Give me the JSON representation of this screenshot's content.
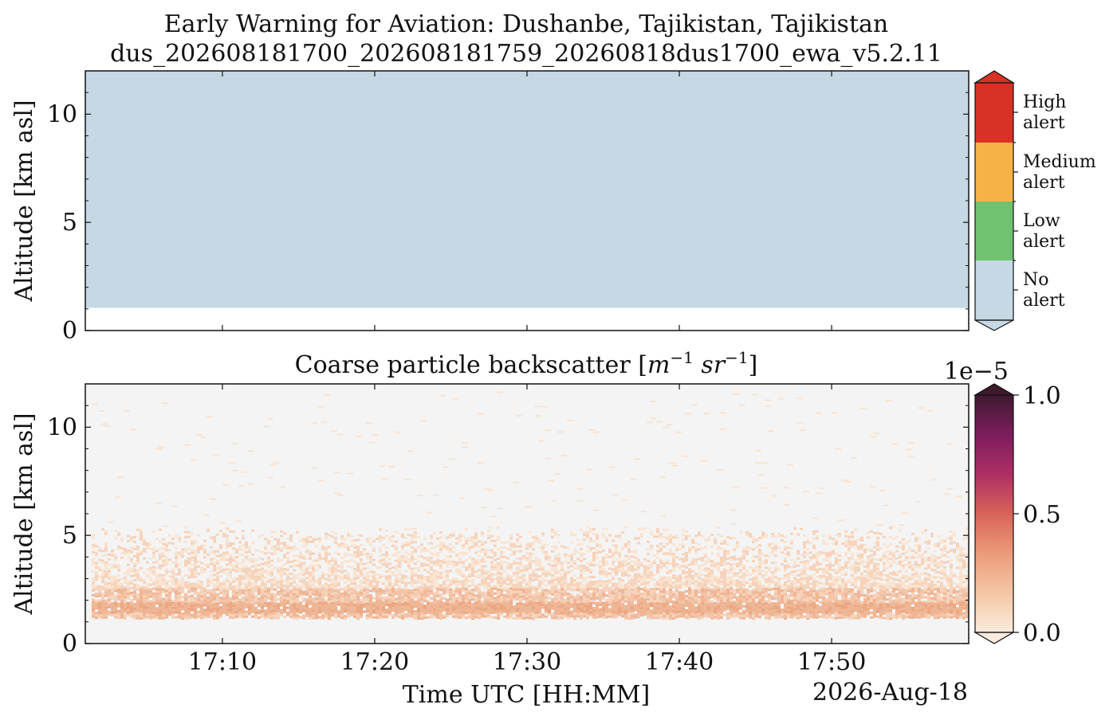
{
  "title_line1": "Early Warning for Aviation: Dushanbe, Tajikistan, Tajikistan",
  "title_line2": "dus_202608181700_202608181759_20260818dus1700_ewa_v5.2.11",
  "chart_data": [
    {
      "type": "heatmap",
      "panel": "alert",
      "title": "",
      "xlabel": "",
      "ylabel": "Altitude [km asl]",
      "x_range": [
        "17:00",
        "17:59"
      ],
      "ylim": [
        0,
        12
      ],
      "yticks": [
        0,
        5,
        10
      ],
      "data_bottom_km": 1.05,
      "data_top_km": 12,
      "alert_level": "No alert",
      "colorbar": {
        "labels": [
          "No\nalert",
          "Low\nalert",
          "Medium\nalert",
          "High\nalert"
        ],
        "colors": [
          "#c5d8e4",
          "#70c26f",
          "#f6b247",
          "#d83126"
        ],
        "extend": "both"
      }
    },
    {
      "type": "heatmap",
      "panel": "backscatter",
      "title_text": "Coarse particle backscatter ",
      "title_units": [
        "m",
        "−1",
        "sr",
        "−1"
      ],
      "xlabel": "Time UTC [HH:MM]",
      "ylabel": "Altitude [km asl]",
      "date_label": "2026-Aug-18",
      "xticks": [
        "17:10",
        "17:20",
        "17:30",
        "17:40",
        "17:50"
      ],
      "xlim_minutes": [
        1,
        59
      ],
      "ylim": [
        0,
        12
      ],
      "yticks": [
        0,
        5,
        10
      ],
      "background_color": "#f4f4f4",
      "layer": {
        "base_km": 1.2,
        "strong_top_km": 2.6,
        "dense_band_km": [
          1.45,
          1.95
        ],
        "sparse_top_km": 5.2
      },
      "colorbar": {
        "min": 0.0,
        "max": 1.0,
        "offset_label": "1e−5",
        "tick_labels": [
          "0.0",
          "0.5",
          "1.0"
        ],
        "tick_values": [
          0,
          0.5,
          1.0
        ],
        "colormap": [
          "#faebdd",
          "#f4c7a5",
          "#eb9b79",
          "#d8635a",
          "#ad2f63",
          "#7c1d5e",
          "#3e1a2e"
        ],
        "extend": "both"
      }
    }
  ]
}
